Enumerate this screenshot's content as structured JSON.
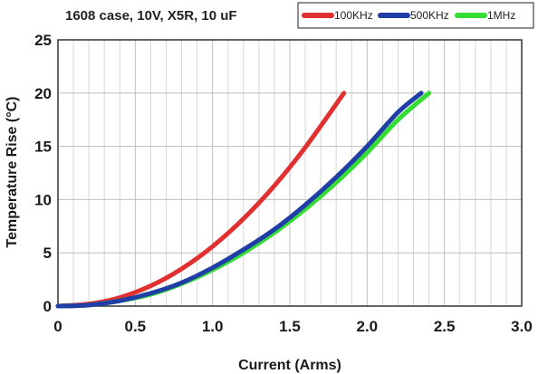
{
  "chart_data": {
    "type": "line",
    "title": "1608 case, 10V, X5R, 10 uF",
    "xlabel": "Current (Arms)",
    "ylabel": "Temperature Rise (°C)",
    "xlim": [
      0,
      3
    ],
    "ylim": [
      0,
      25
    ],
    "xticks": [
      0,
      0.5,
      1.0,
      1.5,
      2.0,
      2.5,
      3.0
    ],
    "xtick_labels": [
      "0",
      "0.5",
      "1.0",
      "1.5",
      "2.0",
      "2.5",
      "3.0"
    ],
    "yticks": [
      0,
      5,
      10,
      15,
      20,
      25
    ],
    "ytick_labels": [
      "0",
      "5",
      "10",
      "15",
      "20",
      "25"
    ],
    "grid": true,
    "legend_position": "top-right",
    "series": [
      {
        "name": "100KHz",
        "color": "#e03030",
        "x": [
          0.0,
          0.2,
          0.4,
          0.6,
          0.8,
          1.0,
          1.2,
          1.4,
          1.6,
          1.85
        ],
        "y": [
          0.0,
          0.2,
          0.8,
          1.9,
          3.5,
          5.6,
          8.2,
          11.3,
          14.9,
          20.0
        ]
      },
      {
        "name": "500KHz",
        "color": "#1f3fa6",
        "x": [
          0.0,
          0.2,
          0.4,
          0.6,
          0.8,
          1.0,
          1.2,
          1.4,
          1.6,
          1.8,
          2.0,
          2.2,
          2.35
        ],
        "y": [
          0.0,
          0.1,
          0.5,
          1.2,
          2.2,
          3.6,
          5.3,
          7.2,
          9.5,
          12.1,
          15.0,
          18.2,
          20.0
        ]
      },
      {
        "name": "1MHz",
        "color": "#33dd33",
        "x": [
          0.0,
          0.2,
          0.4,
          0.6,
          0.8,
          1.0,
          1.2,
          1.4,
          1.6,
          1.8,
          2.0,
          2.2,
          2.4
        ],
        "y": [
          0.0,
          0.1,
          0.5,
          1.1,
          2.1,
          3.4,
          5.0,
          6.9,
          9.1,
          11.6,
          14.4,
          17.5,
          20.0
        ]
      }
    ]
  }
}
